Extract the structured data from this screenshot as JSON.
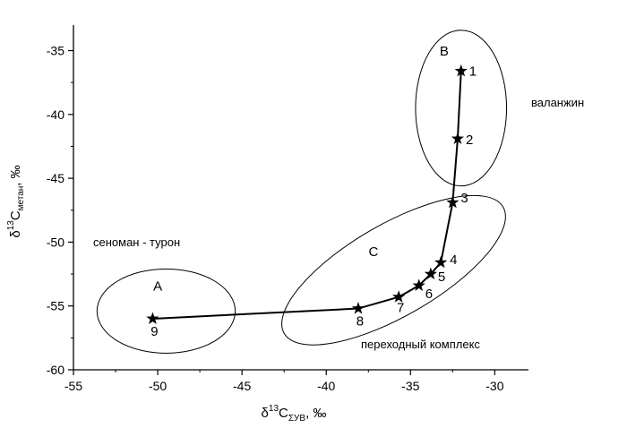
{
  "chart_data": {
    "type": "scatter",
    "xlim": [
      -55,
      -28
    ],
    "ylim": [
      -60,
      -33
    ],
    "x_ticks": [
      -55,
      -50,
      -45,
      -40,
      -35,
      -30
    ],
    "y_ticks": [
      -35,
      -40,
      -45,
      -50,
      -55,
      -60
    ],
    "x_tick_labels": [
      "-55",
      "-50",
      "-45",
      "-40",
      "-35",
      "-30"
    ],
    "y_tick_labels": [
      "-35",
      "-40",
      "-45",
      "-50",
      "-55",
      "-60"
    ],
    "xlabel": {
      "main": "δ",
      "sup": "13",
      "c": "C",
      "sub": "ΣУВ",
      "suffix": ", ‰"
    },
    "ylabel": {
      "main": "δ",
      "sup": "13",
      "c": "C",
      "sub": "метан",
      "suffix": ", ‰"
    },
    "grid": false,
    "points": [
      {
        "label": "1",
        "x": -32.0,
        "y": -36.6
      },
      {
        "label": "2",
        "x": -32.2,
        "y": -41.9
      },
      {
        "label": "3",
        "x": -32.5,
        "y": -46.9
      },
      {
        "label": "4",
        "x": -33.2,
        "y": -51.6
      },
      {
        "label": "5",
        "x": -33.8,
        "y": -52.5
      },
      {
        "label": "6",
        "x": -34.5,
        "y": -53.4
      },
      {
        "label": "7",
        "x": -35.7,
        "y": -54.3
      },
      {
        "label": "8",
        "x": -38.1,
        "y": -55.2
      },
      {
        "label": "9",
        "x": -50.3,
        "y": -56.0
      }
    ],
    "regions": [
      {
        "label": "A",
        "cx": -49.5,
        "cy": -55.4,
        "rx": 4.1,
        "ry": 3.3
      },
      {
        "label": "B",
        "cx": -32.0,
        "cy": -39.5,
        "rx": 2.7,
        "ry": 6.1
      },
      {
        "label": "C",
        "cx": -36.0,
        "cy": -52.2,
        "rx": 7.5,
        "ry": 3.6,
        "rotate": -30
      }
    ],
    "annotations": {
      "valanzhin": "валанжин",
      "senoman": "сеноман - турон",
      "perekhodny": "переходный комплекс"
    }
  }
}
